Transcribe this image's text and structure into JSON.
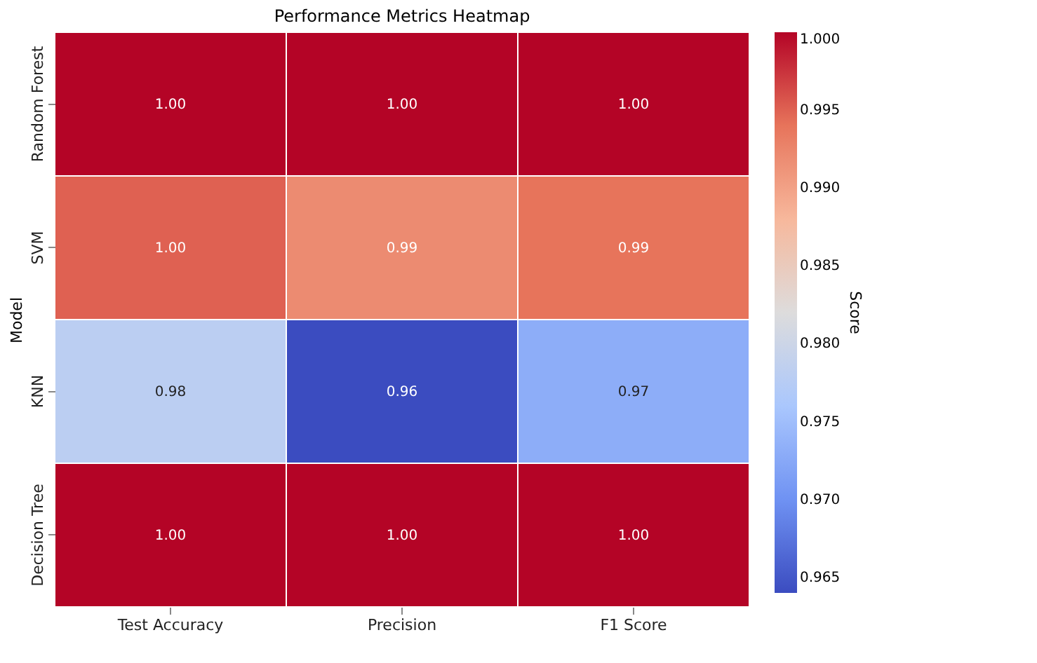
{
  "chart_data": {
    "type": "heatmap",
    "title": "Performance Metrics Heatmap",
    "xlabel": null,
    "ylabel": "Model",
    "clabel": "Score",
    "categories": [
      "Test Accuracy",
      "Precision",
      "F1 Score"
    ],
    "y_categories": [
      "Random Forest",
      "SVM",
      "KNN",
      "Decision Tree"
    ],
    "cells": [
      [
        1.0,
        1.0,
        1.0
      ],
      [
        0.995,
        0.992,
        0.994
      ],
      [
        0.978,
        0.964,
        0.973
      ],
      [
        1.0,
        1.0,
        1.0
      ]
    ],
    "cell_labels": [
      [
        "1.00",
        "1.00",
        "1.00"
      ],
      [
        "1.00",
        "0.99",
        "0.99"
      ],
      [
        "0.98",
        "0.96",
        "0.97"
      ],
      [
        "1.00",
        "1.00",
        "1.00"
      ]
    ],
    "clim": [
      0.964,
      1.0
    ],
    "cticks": [
      0.965,
      {
        "value": 0.97,
        "label": "0.970"
      },
      0.975,
      {
        "value": 0.98,
        "label": "0.980"
      },
      0.985,
      {
        "value": 0.99,
        "label": "0.990"
      },
      0.995,
      {
        "value": 1.0,
        "label": "1.000"
      }
    ]
  }
}
